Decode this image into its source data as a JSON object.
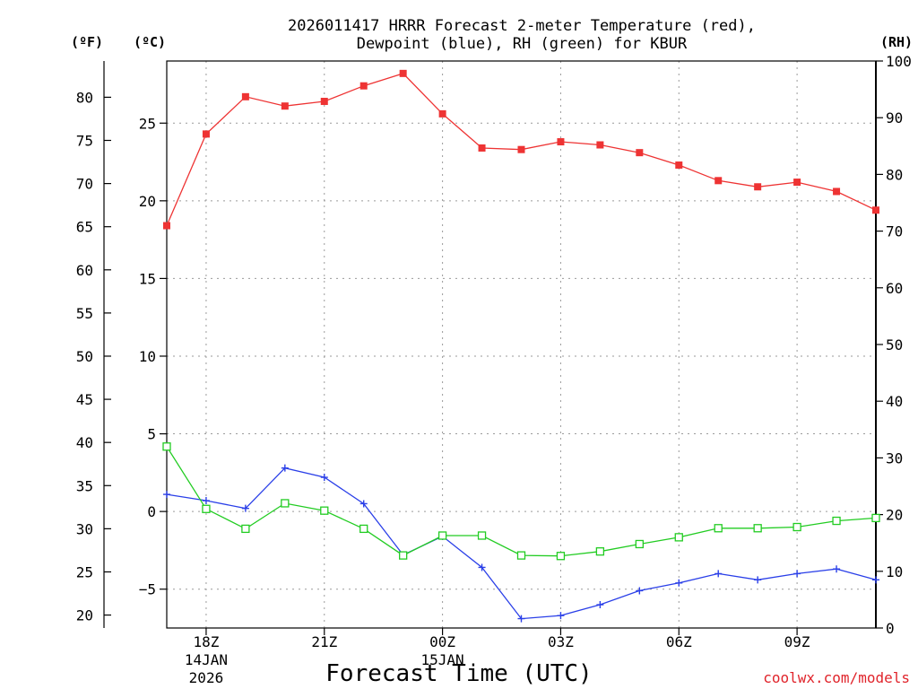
{
  "chart_data": {
    "type": "line",
    "title_line1": "2026011417 HRRR Forecast 2-meter Temperature (red),",
    "title_line2": "Dewpoint (blue), RH (green) for KBUR",
    "xlabel": "Forecast Time (UTC)",
    "credit": "coolwx.com/models",
    "units": {
      "fahrenheit": "(ºF)",
      "celsius": "(ºC)",
      "rh": "(RH)"
    },
    "x_hours_utc": [
      "17Z",
      "18Z",
      "19Z",
      "20Z",
      "21Z",
      "22Z",
      "23Z",
      "00Z",
      "01Z",
      "02Z",
      "03Z",
      "04Z",
      "05Z",
      "06Z",
      "07Z",
      "08Z",
      "09Z",
      "10Z",
      "11Z"
    ],
    "x_ticks": [
      {
        "index": 1,
        "label": "18Z",
        "sub1": "14JAN",
        "sub2": "2026"
      },
      {
        "index": 4,
        "label": "21Z",
        "sub1": "",
        "sub2": ""
      },
      {
        "index": 7,
        "label": "00Z",
        "sub1": "15JAN",
        "sub2": ""
      },
      {
        "index": 10,
        "label": "03Z",
        "sub1": "",
        "sub2": ""
      },
      {
        "index": 13,
        "label": "06Z",
        "sub1": "",
        "sub2": ""
      },
      {
        "index": 16,
        "label": "09Z",
        "sub1": "",
        "sub2": ""
      }
    ],
    "celsius_axis": {
      "range": [
        -7.5,
        29
      ],
      "ticks": [
        -5,
        0,
        5,
        10,
        15,
        20,
        25
      ]
    },
    "fahrenheit_axis": {
      "ticks": [
        20,
        25,
        30,
        35,
        40,
        45,
        50,
        55,
        60,
        65,
        70,
        75,
        80
      ]
    },
    "rh_axis": {
      "range": [
        0,
        100
      ],
      "ticks": [
        0,
        10,
        20,
        30,
        40,
        50,
        60,
        70,
        80,
        90,
        100
      ]
    },
    "series": [
      {
        "name": "Temperature (C)",
        "color": "#ee3333",
        "marker": "filled-square",
        "axis": "celsius",
        "values": [
          18.4,
          24.3,
          26.7,
          26.1,
          26.4,
          27.4,
          28.2,
          25.6,
          23.4,
          23.3,
          23.8,
          23.6,
          23.1,
          22.3,
          21.3,
          20.9,
          21.2,
          20.6,
          19.4
        ]
      },
      {
        "name": "Dewpoint (C)",
        "color": "#2a3fe8",
        "marker": "plus",
        "axis": "celsius",
        "values": [
          1.1,
          0.7,
          0.2,
          2.8,
          2.2,
          0.5,
          -2.8,
          -1.6,
          -3.6,
          -6.9,
          -6.7,
          -6.0,
          -5.1,
          -4.6,
          -4.0,
          -4.4,
          -4.0,
          -3.7,
          -4.4
        ]
      },
      {
        "name": "RH (%)",
        "color": "#22cc22",
        "marker": "open-square",
        "axis": "rh",
        "values": [
          32,
          21,
          17.5,
          22,
          20.7,
          17.5,
          12.8,
          16.3,
          16.3,
          12.8,
          12.7,
          13.5,
          14.8,
          16,
          17.6,
          17.6,
          17.8,
          18.9,
          19.4
        ]
      }
    ]
  }
}
